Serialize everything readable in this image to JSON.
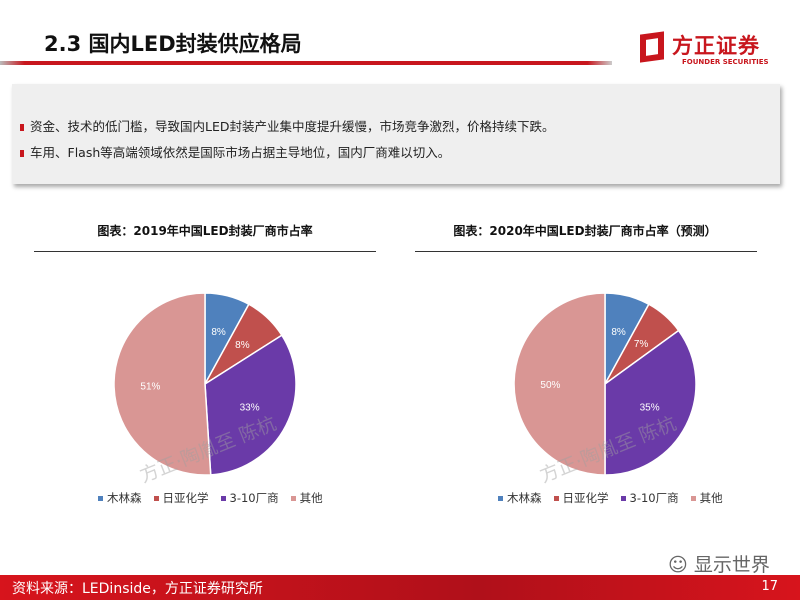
{
  "header": {
    "title": "2.3 国内LED封装供应格局",
    "logo_cn": "方正证券",
    "logo_en": "FOUNDER SECURITIES"
  },
  "bullets": [
    "资金、技术的低门槛，导致国内LED封装产业集中度提升缓慢，市场竞争激烈，价格持续下跌。",
    "车用、Flash等高端领域依然是国际市场占据主导地位，国内厂商难以切入。"
  ],
  "watermark": "方正·陶胤至 陈杭",
  "footer": {
    "source": "资料来源：LEDinside，方正证券研究所",
    "page": "17",
    "wechat": "显示世界"
  },
  "colors": [
    "#4f81bd",
    "#c0504d",
    "#6a3aa8",
    "#d99694"
  ],
  "chart_data": [
    {
      "type": "pie",
      "title": "图表：2019年中国LED封装厂商市占率",
      "categories": [
        "木林森",
        "日亚化学",
        "3-10厂商",
        "其他"
      ],
      "values": [
        8,
        8,
        33,
        51
      ],
      "labels": [
        "8%",
        "8%",
        "33%",
        "51%"
      ],
      "legend": "bottom"
    },
    {
      "type": "pie",
      "title": "图表：2020年中国LED封装厂商市占率（预测）",
      "categories": [
        "木林森",
        "日亚化学",
        "3-10厂商",
        "其他"
      ],
      "values": [
        8,
        7,
        35,
        50
      ],
      "labels": [
        "8%",
        "7%",
        "35%",
        "50%"
      ],
      "legend": "bottom"
    }
  ]
}
